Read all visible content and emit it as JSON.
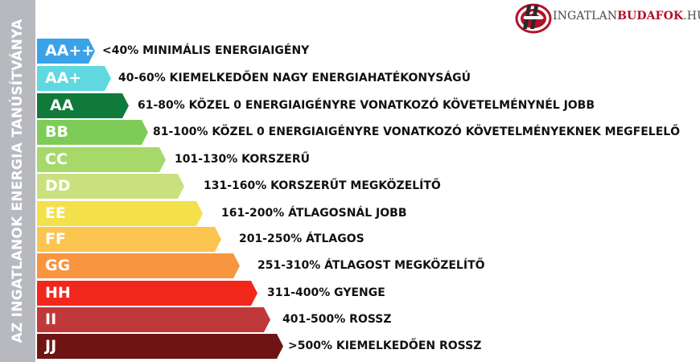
{
  "side_title": "AZ INGATLANOK ENERGIA TANÚSÍTVÁNYA",
  "logo": {
    "part_a": "INGATLAN",
    "part_b": "BUDAFOK",
    "part_c": ".HU"
  },
  "ratings": [
    {
      "code": "AA++",
      "text": "<40% MINIMÁLIS ENERGIAIGÉNY",
      "color": "#3aa2e8"
    },
    {
      "code": "AA+",
      "text": "40-60% KIEMELKEDŐEN NAGY ENERGIAHATÉKONYSÁGÚ",
      "color": "#5fd8df"
    },
    {
      "code": "AA",
      "text": "61-80% KÖZEL 0 ENERGIAIGÉNYRE VONATKOZÓ KÖVETELMÉNYNÉL JOBB",
      "color": "#0f7a39"
    },
    {
      "code": "BB",
      "text": "81-100% KÖZEL 0 ENERGIAIGÉNYRE VONATKOZÓ KÖVETELMÉNYEKNEK MEGFELELŐ",
      "color": "#7dcc58"
    },
    {
      "code": "CC",
      "text": "101-130% KORSZERŰ",
      "color": "#a7d96a"
    },
    {
      "code": "DD",
      "text": "131-160% KORSZERŰT MEGKÖZELÍTŐ",
      "color": "#c9e07e"
    },
    {
      "code": "EE",
      "text": "161-200% ÁTLAGOSNÁL JOBB",
      "color": "#f4e04a"
    },
    {
      "code": "FF",
      "text": "201-250% ÁTLAGOS",
      "color": "#fcc451"
    },
    {
      "code": "GG",
      "text": "251-310% ÁTLAGOST MEGKÖZELÍTŐ",
      "color": "#f8953f"
    },
    {
      "code": "HH",
      "text": "311-400% GYENGE",
      "color": "#f2271c"
    },
    {
      "code": "II",
      "text": "401-500% ROSSZ",
      "color": "#c0393a"
    },
    {
      "code": "JJ",
      "text": ">500% KIEMELKEDŐEN ROSSZ",
      "color": "#6f1414"
    }
  ]
}
